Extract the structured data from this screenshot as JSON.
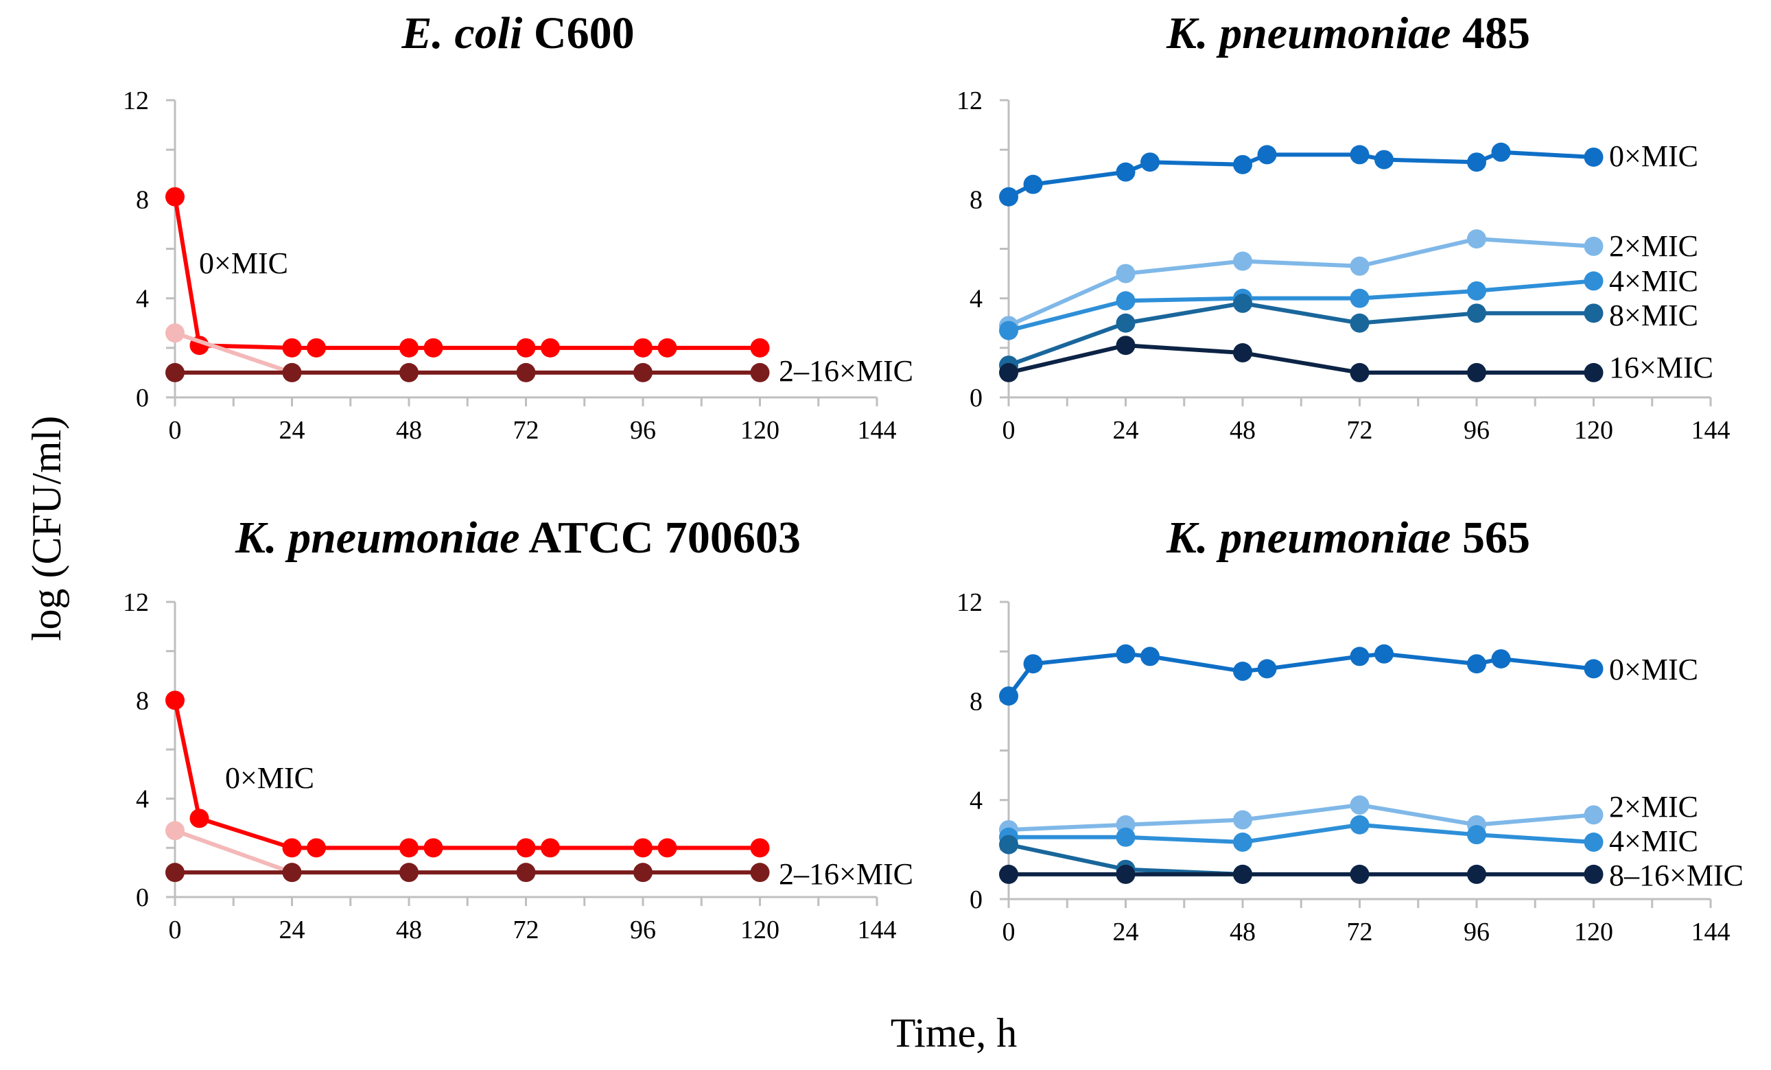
{
  "figure": {
    "ylabel": "log (CFU/ml)",
    "xlabel": "Time, h"
  },
  "chart_data": [
    {
      "type": "line",
      "title_italic": "E. coli",
      "title_rest": "C600",
      "xlim": [
        0,
        144
      ],
      "ylim": [
        0,
        12
      ],
      "xticks": [
        "0",
        "24",
        "48",
        "72",
        "96",
        "120",
        "144"
      ],
      "yticks": [
        "0",
        "4",
        "8",
        "12"
      ],
      "series": [
        {
          "name": "0×MIC",
          "label": "0×MIC",
          "color": "#ff0000",
          "x": [
            0,
            5,
            24,
            29,
            48,
            53,
            72,
            77,
            96,
            101,
            120
          ],
          "y": [
            8.1,
            2.1,
            2.0,
            2.0,
            2.0,
            2.0,
            2.0,
            2.0,
            2.0,
            2.0,
            2.0
          ]
        },
        {
          "name": "pale-series",
          "color": "#f4b8b8",
          "x": [
            0,
            24
          ],
          "y": [
            2.6,
            1.0
          ]
        },
        {
          "name": "2–16×MIC",
          "label": "2–16×MIC",
          "color": "#7b1c1c",
          "x": [
            0,
            24,
            48,
            72,
            96,
            120
          ],
          "y": [
            1.0,
            1.0,
            1.0,
            1.0,
            1.0,
            1.0
          ]
        }
      ]
    },
    {
      "type": "line",
      "title_italic": "K. pneumoniae",
      "title_rest": "485",
      "xlim": [
        0,
        144
      ],
      "ylim": [
        0,
        12
      ],
      "xticks": [
        "0",
        "24",
        "48",
        "72",
        "96",
        "120",
        "144"
      ],
      "yticks": [
        "0",
        "4",
        "8",
        "12"
      ],
      "series": [
        {
          "name": "0×MIC",
          "label": "0×MIC",
          "color": "#0f6fc6",
          "x": [
            0,
            5,
            24,
            29,
            48,
            53,
            72,
            77,
            96,
            101,
            120
          ],
          "y": [
            8.1,
            8.6,
            9.1,
            9.5,
            9.4,
            9.8,
            9.8,
            9.6,
            9.5,
            9.9,
            9.7
          ]
        },
        {
          "name": "2×MIC",
          "label": "2×MIC",
          "color": "#7fb8e8",
          "x": [
            0,
            24,
            48,
            72,
            96,
            120
          ],
          "y": [
            2.9,
            5.0,
            5.5,
            5.3,
            6.4,
            6.1
          ]
        },
        {
          "name": "4×MIC",
          "label": "4×MIC",
          "color": "#2e8fd8",
          "x": [
            0,
            24,
            48,
            72,
            96,
            120
          ],
          "y": [
            2.7,
            3.9,
            4.0,
            4.0,
            4.3,
            4.7
          ]
        },
        {
          "name": "8×MIC",
          "label": "8×MIC",
          "color": "#19669b",
          "x": [
            0,
            24,
            48,
            72,
            96,
            120
          ],
          "y": [
            1.3,
            3.0,
            3.8,
            3.0,
            3.4,
            3.4
          ]
        },
        {
          "name": "16×MIC",
          "label": "16×MIC",
          "color": "#0c2345",
          "x": [
            0,
            24,
            48,
            72,
            96,
            120
          ],
          "y": [
            1.0,
            2.1,
            1.8,
            1.0,
            1.0,
            1.0
          ]
        }
      ]
    },
    {
      "type": "line",
      "title_italic": "K. pneumoniae",
      "title_rest": "ATCC 700603",
      "xlim": [
        0,
        144
      ],
      "ylim": [
        0,
        12
      ],
      "xticks": [
        "0",
        "24",
        "48",
        "72",
        "96",
        "120",
        "144"
      ],
      "yticks": [
        "0",
        "4",
        "8",
        "12"
      ],
      "series": [
        {
          "name": "0×MIC",
          "label": "0×MIC",
          "color": "#ff0000",
          "x": [
            0,
            5,
            24,
            29,
            48,
            53,
            72,
            77,
            96,
            101,
            120
          ],
          "y": [
            8.0,
            3.2,
            2.0,
            2.0,
            2.0,
            2.0,
            2.0,
            2.0,
            2.0,
            2.0,
            2.0
          ]
        },
        {
          "name": "pale-series",
          "color": "#f4b8b8",
          "x": [
            0,
            24
          ],
          "y": [
            2.7,
            1.0
          ]
        },
        {
          "name": "2–16×MIC",
          "label": "2–16×MIC",
          "color": "#7b1c1c",
          "x": [
            0,
            24,
            48,
            72,
            96,
            120
          ],
          "y": [
            1.0,
            1.0,
            1.0,
            1.0,
            1.0,
            1.0
          ]
        }
      ]
    },
    {
      "type": "line",
      "title_italic": "K. pneumoniae",
      "title_rest": "565",
      "xlim": [
        0,
        144
      ],
      "ylim": [
        0,
        12
      ],
      "xticks": [
        "0",
        "24",
        "48",
        "72",
        "96",
        "120",
        "144"
      ],
      "yticks": [
        "0",
        "4",
        "8",
        "12"
      ],
      "series": [
        {
          "name": "0×MIC",
          "label": "0×MIC",
          "color": "#0f6fc6",
          "x": [
            0,
            5,
            24,
            29,
            48,
            53,
            72,
            77,
            96,
            101,
            120
          ],
          "y": [
            8.2,
            9.5,
            9.9,
            9.8,
            9.2,
            9.3,
            9.8,
            9.9,
            9.5,
            9.7,
            9.3
          ]
        },
        {
          "name": "2×MIC",
          "label": "2×MIC",
          "color": "#7fb8e8",
          "x": [
            0,
            24,
            48,
            72,
            96,
            120
          ],
          "y": [
            2.8,
            3.0,
            3.2,
            3.8,
            3.0,
            3.4
          ]
        },
        {
          "name": "4×MIC",
          "label": "4×MIC",
          "color": "#2e8fd8",
          "x": [
            0,
            24,
            48,
            72,
            96,
            120
          ],
          "y": [
            2.5,
            2.5,
            2.3,
            3.0,
            2.6,
            2.3
          ]
        },
        {
          "name": "8–16×MIC-upper",
          "color": "#19669b",
          "x": [
            0,
            24,
            48
          ],
          "y": [
            2.2,
            1.2,
            1.0
          ]
        },
        {
          "name": "8–16×MIC",
          "label": "8–16×MIC",
          "color": "#0c2345",
          "x": [
            0,
            24,
            48,
            72,
            96,
            120
          ],
          "y": [
            1.0,
            1.0,
            1.0,
            1.0,
            1.0,
            1.0
          ]
        }
      ]
    }
  ]
}
